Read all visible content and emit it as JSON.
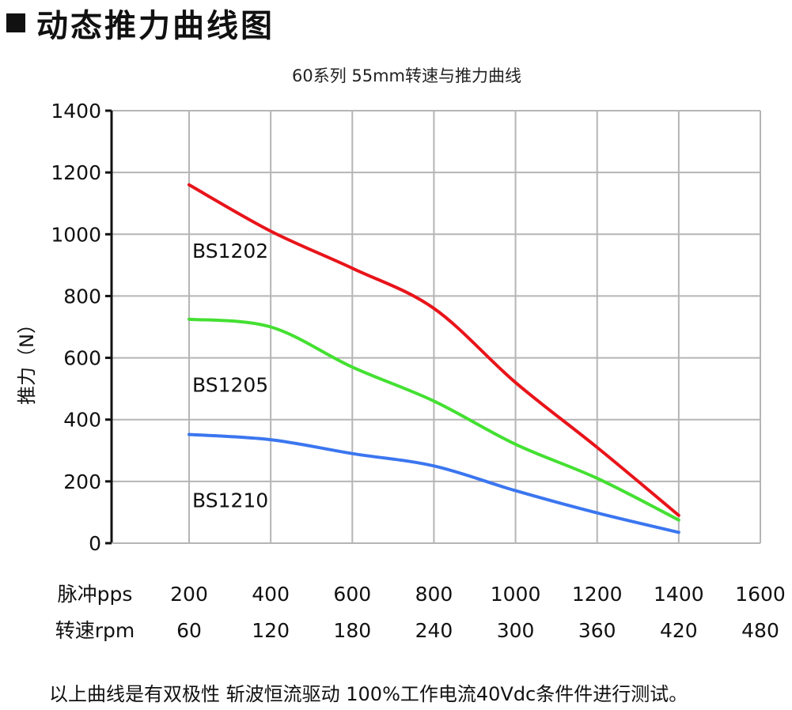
{
  "heading": "动态推力曲线图",
  "footnote": "以上曲线是有双极性 斩波恒流驱动 100%工作电流40Vdc条件件进行测试。",
  "chart_data": {
    "type": "line",
    "title": "60系列 55mm转速与推力曲线",
    "ylabel": "推力（N）",
    "ylim": [
      0,
      1400
    ],
    "yticks": [
      "0",
      "200",
      "400",
      "600",
      "800",
      "1000",
      "1200",
      "1400"
    ],
    "x_axes": [
      {
        "label": "脉冲pps",
        "ticks": [
          "200",
          "400",
          "600",
          "800",
          "1000",
          "1200",
          "1400",
          "1600"
        ]
      },
      {
        "label": "转速rpm",
        "ticks": [
          "60",
          "120",
          "180",
          "240",
          "300",
          "360",
          "420",
          "480"
        ]
      }
    ],
    "xlim": [
      200,
      1600
    ],
    "grid": true,
    "series": [
      {
        "name": "BS1202",
        "color": "#e8141a",
        "x": [
          200,
          400,
          600,
          800,
          1000,
          1200,
          1400
        ],
        "y": [
          1160,
          1010,
          890,
          760,
          520,
          310,
          90
        ]
      },
      {
        "name": "BS1205",
        "color": "#44e032",
        "x": [
          200,
          400,
          600,
          800,
          1000,
          1200,
          1400
        ],
        "y": [
          725,
          700,
          570,
          460,
          320,
          210,
          75
        ]
      },
      {
        "name": "BS1210",
        "color": "#3b76f0",
        "x": [
          200,
          400,
          600,
          800,
          1000,
          1200,
          1400
        ],
        "y": [
          352,
          335,
          290,
          250,
          170,
          98,
          35
        ]
      }
    ]
  }
}
